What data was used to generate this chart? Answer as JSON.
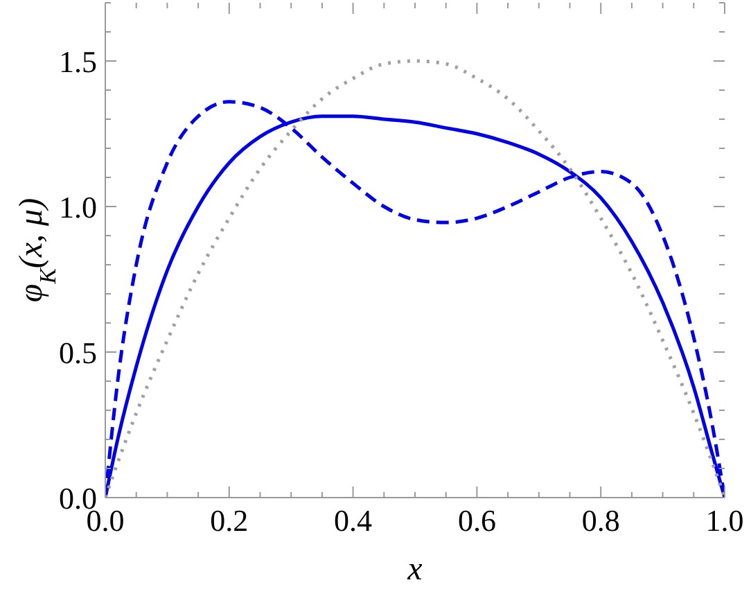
{
  "chart_data": {
    "type": "line",
    "xlabel": "x",
    "ylabel": "φ$_{K}$(x, μ)",
    "x": [
      0,
      0.02,
      0.05,
      0.1,
      0.15,
      0.2,
      0.25,
      0.3,
      0.35,
      0.4,
      0.45,
      0.5,
      0.55,
      0.6,
      0.65,
      0.7,
      0.75,
      0.8,
      0.85,
      0.9,
      0.95,
      0.98,
      1
    ],
    "series": [
      {
        "color": "#0000e6",
        "line_style": "solid",
        "values": [
          0,
          0.2,
          0.45,
          0.78,
          1.0,
          1.15,
          1.24,
          1.29,
          1.31,
          1.31,
          1.3,
          1.29,
          1.27,
          1.25,
          1.22,
          1.18,
          1.12,
          1.03,
          0.88,
          0.67,
          0.38,
          0.15,
          0
        ]
      },
      {
        "color": "#0000e6",
        "line_style": "dashed",
        "values": [
          0,
          0.4,
          0.8,
          1.15,
          1.31,
          1.36,
          1.34,
          1.27,
          1.17,
          1.08,
          1.0,
          0.955,
          0.945,
          0.96,
          1.0,
          1.05,
          1.1,
          1.12,
          1.08,
          0.9,
          0.55,
          0.25,
          0
        ]
      },
      {
        "color": "#a0a0a0",
        "line_style": "dotted",
        "values": [
          0,
          0.12,
          0.29,
          0.54,
          0.77,
          0.96,
          1.13,
          1.26,
          1.37,
          1.44,
          1.49,
          1.5,
          1.49,
          1.44,
          1.37,
          1.26,
          1.13,
          0.96,
          0.77,
          0.54,
          0.29,
          0.12,
          0
        ]
      }
    ],
    "xlim": [
      0,
      1
    ],
    "ylim": [
      0,
      1.7
    ],
    "xticks": [
      {
        "value": 0,
        "label": "0.0"
      },
      {
        "value": 0.05,
        "label": null
      },
      {
        "value": 0.1,
        "label": null
      },
      {
        "value": 0.15,
        "label": null
      },
      0.2,
      {
        "value": 0.25,
        "label": null
      },
      {
        "value": 0.3,
        "label": null
      },
      {
        "value": 0.35,
        "label": null
      },
      0.4,
      {
        "value": 0.45,
        "label": null
      },
      {
        "value": 0.5,
        "label": null
      },
      {
        "value": 0.55,
        "label": null
      },
      0.6,
      {
        "value": 0.65,
        "label": null
      },
      {
        "value": 0.7,
        "label": null
      },
      {
        "value": 0.75,
        "label": null
      },
      0.8,
      {
        "value": 0.85,
        "label": null
      },
      {
        "value": 0.9,
        "label": null
      },
      {
        "value": 0.95,
        "label": null
      },
      {
        "value": 1,
        "label": "1.0"
      }
    ],
    "yticks": [
      {
        "value": 0,
        "label": "0.0"
      },
      {
        "value": 0.1,
        "label": null
      },
      {
        "value": 0.2,
        "label": null
      },
      {
        "value": 0.3,
        "label": null
      },
      {
        "value": 0.4,
        "label": null
      },
      0.5,
      {
        "value": 0.6,
        "label": null
      },
      {
        "value": 0.7,
        "label": null
      },
      {
        "value": 0.8,
        "label": null
      },
      {
        "value": 0.9,
        "label": null
      },
      {
        "value": 1,
        "label": "1.0"
      },
      {
        "value": 1.1,
        "label": null
      },
      {
        "value": 1.2,
        "label": null
      },
      {
        "value": 1.3,
        "label": null
      },
      {
        "value": 1.4,
        "label": null
      },
      1.5,
      {
        "value": 1.6,
        "label": null
      },
      {
        "value": 1.7,
        "label": null
      }
    ],
    "grid": false,
    "legend": false,
    "marker": "none"
  }
}
